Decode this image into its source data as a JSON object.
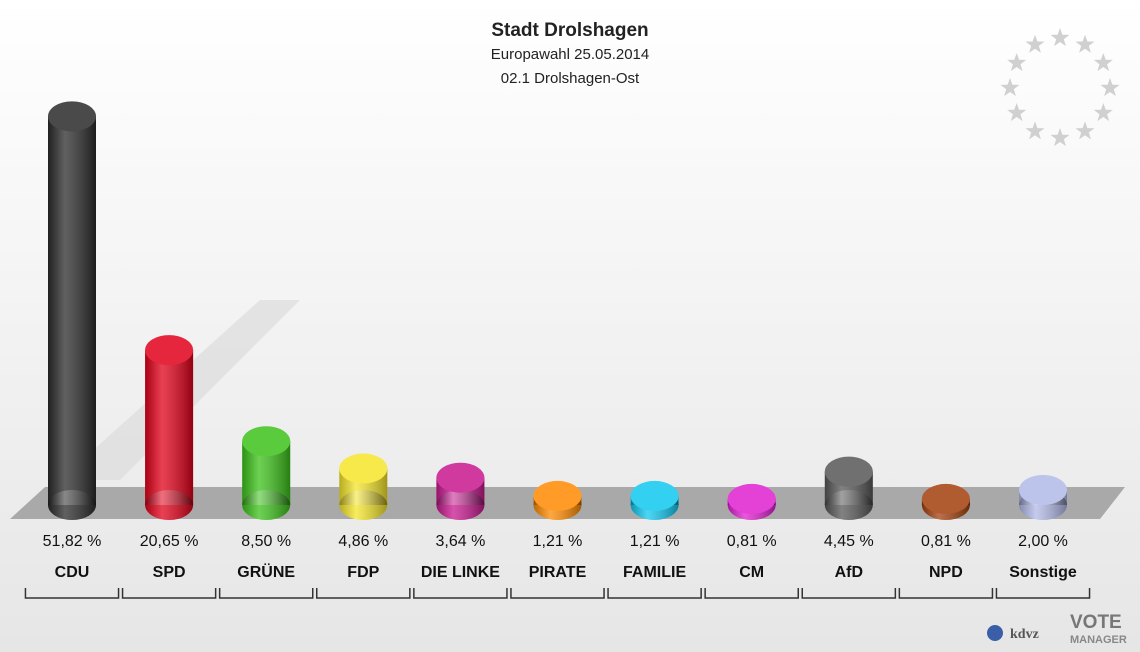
{
  "chart_data": {
    "type": "bar",
    "title": "Stadt Drolshagen",
    "subtitle": "Europawahl 25.05.2014",
    "subtitle2": "02.1 Drolshagen-Ost",
    "categories": [
      "CDU",
      "SPD",
      "GRÜNE",
      "FDP",
      "DIE LINKE",
      "PIRATE",
      "FAMILIE",
      "CM",
      "AfD",
      "NPD",
      "Sonstige"
    ],
    "values": [
      51.82,
      20.65,
      8.5,
      4.86,
      3.64,
      1.21,
      1.21,
      0.81,
      4.45,
      0.81,
      2.0
    ],
    "value_labels": [
      "51,82 %",
      "20,65 %",
      "8,50 %",
      "4,86 %",
      "3,64 %",
      "1,21 %",
      "1,21 %",
      "0,81 %",
      "4,45 %",
      "0,81 %",
      "2,00 %"
    ],
    "colors": [
      "#2b2b2b",
      "#e2001a",
      "#3cc21a",
      "#f5e52a",
      "#c8188f",
      "#ff8a00",
      "#10c8f0",
      "#e020d0",
      "#585858",
      "#a3400c",
      "#b2bae8"
    ]
  },
  "logo": {
    "left": "kdvz",
    "right": "VOTE",
    "right_sub": "MANAGER"
  }
}
